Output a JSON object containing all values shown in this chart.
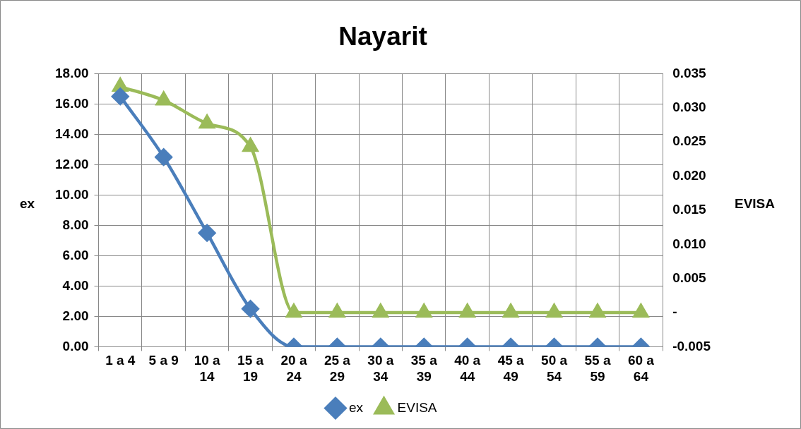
{
  "chart_data": {
    "type": "line",
    "title": "Nayarit",
    "ylabel": "ex",
    "y2label": "EVISA",
    "categories": [
      "1 a 4",
      "5 a 9",
      "10 a 14",
      "15 a 19",
      "20 a 24",
      "25 a 29",
      "30 a 34",
      "35 a 39",
      "40 a 44",
      "45 a 49",
      "50 a 54",
      "55 a 59",
      "60 a 64"
    ],
    "series": [
      {
        "name": "ex",
        "color": "#4a7ebb",
        "marker": "diamond",
        "values": [
          16.5,
          12.5,
          7.5,
          2.5,
          0,
          0,
          0,
          0,
          0,
          0,
          0,
          0,
          0
        ]
      },
      {
        "name": "EVISA",
        "color": "#9bbb59",
        "marker": "triangle",
        "axis": "y2",
        "values": [
          0.0331,
          0.0311,
          0.0277,
          0.0243,
          0,
          0,
          0,
          0,
          0,
          0,
          0,
          0,
          0
        ]
      }
    ],
    "ylim": [
      0,
      18
    ],
    "yticks": [
      {
        "value": 0,
        "label": "0.00"
      },
      {
        "value": 2,
        "label": "2.00"
      },
      {
        "value": 4,
        "label": "4.00"
      },
      {
        "value": 6,
        "label": "6.00"
      },
      {
        "value": 8,
        "label": "8.00"
      },
      {
        "value": 10,
        "label": "10.00"
      },
      {
        "value": 12,
        "label": "12.00"
      },
      {
        "value": 14,
        "label": "14.00"
      },
      {
        "value": 16,
        "label": "16.00"
      },
      {
        "value": 18,
        "label": "18.00"
      }
    ],
    "y2lim": [
      -0.005,
      0.035
    ],
    "y2ticks": [
      -0.005,
      {
        "value": 0,
        "label": "-"
      },
      0.005,
      {
        "value": 0.01,
        "label": "0.010"
      },
      0.015,
      {
        "value": 0.02,
        "label": "0.020"
      },
      0.025,
      {
        "value": 0.03,
        "label": "0.030"
      },
      0.035
    ],
    "grid": true,
    "legend": "bottom"
  }
}
